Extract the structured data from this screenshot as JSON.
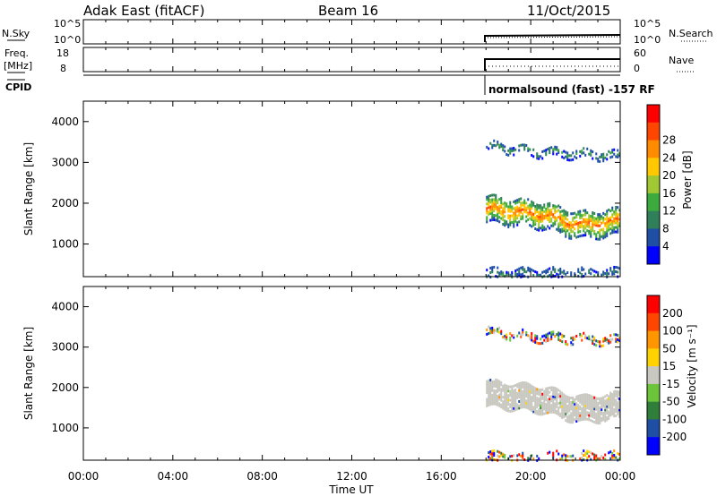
{
  "header": {
    "station": "Adak East (fitACF)",
    "beam": "Beam 16",
    "date": "11/Oct/2015"
  },
  "top_panels": {
    "nsky": {
      "label": "N.Sky",
      "ticks": [
        "10^5",
        "10^0"
      ],
      "right_label": "N.Search",
      "right_ticks": [
        "10^5",
        "10^0"
      ]
    },
    "freq": {
      "label_line1": "Freq.",
      "label_line2": "[MHz]",
      "ticks": [
        "18",
        "8"
      ],
      "right_label": "Nave",
      "right_ticks": [
        "60",
        "0"
      ]
    },
    "cpid": {
      "label": "CPID",
      "text": "normalsound (fast) -157 RF"
    }
  },
  "colors": {
    "power": [
      "#0000ff",
      "#1f4fa5",
      "#2f7f5a",
      "#3caa3c",
      "#a0c832",
      "#ffc800",
      "#ff8c00",
      "#ff4600",
      "#ff0000"
    ],
    "velocity": [
      "#ff0000",
      "#ff4600",
      "#ff9600",
      "#ffd200",
      "#c8c8c0",
      "#6bc43a",
      "#2f7f3a",
      "#1f4fa5",
      "#0000ff"
    ],
    "ground_scatter": "#c8c8c0"
  },
  "chart_data": [
    {
      "type": "heatmap",
      "name": "power",
      "ylabel": "Slant Range [km]",
      "yticks": [
        1000,
        2000,
        3000,
        4000
      ],
      "ylim": [
        200,
        4500
      ],
      "colorbar_label": "Power [dB]",
      "colorbar_ticks": [
        "4",
        "8",
        "12",
        "16",
        "20",
        "24",
        "28"
      ],
      "data_start_hour": 18.0,
      "bands": [
        {
          "name": "main-echo",
          "center_km": [
            1900,
            1850,
            1800,
            1750,
            1600,
            1500,
            1550,
            1600
          ],
          "width_km": 650,
          "peak_db": 26
        },
        {
          "name": "upper-echo",
          "center_km": [
            3450,
            3300,
            3250,
            3200
          ],
          "width_km": 200,
          "peak_db": 10
        },
        {
          "name": "near-range",
          "center_km": [
            300
          ],
          "width_km": 250,
          "peak_db": 8
        }
      ]
    },
    {
      "type": "heatmap",
      "name": "velocity",
      "ylabel": "Slant Range [km]",
      "yticks": [
        1000,
        2000,
        3000,
        4000
      ],
      "ylim": [
        200,
        4500
      ],
      "colorbar_label": "Velocity [m s⁻¹]",
      "colorbar_ticks": [
        "-200",
        "-100",
        "-50",
        "-15",
        "15",
        "50",
        "100",
        "200"
      ],
      "data_start_hour": 18.0,
      "dominant": "ground scatter"
    }
  ],
  "x_axis": {
    "ticks": [
      "00:00",
      "04:00",
      "08:00",
      "12:00",
      "16:00",
      "20:00",
      "00:00"
    ],
    "label": "Time UT",
    "range_hours": [
      0,
      24
    ]
  }
}
